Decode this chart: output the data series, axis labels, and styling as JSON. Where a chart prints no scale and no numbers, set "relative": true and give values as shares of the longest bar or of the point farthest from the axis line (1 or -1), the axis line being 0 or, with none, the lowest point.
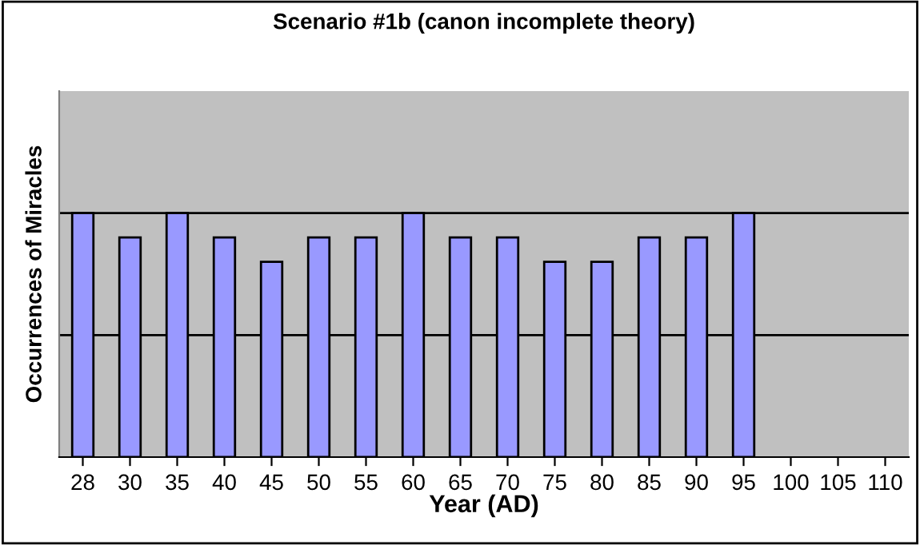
{
  "chart_data": {
    "type": "bar",
    "title": "Scenario #1b (canon incomplete theory)",
    "xlabel": "Year (AD)",
    "ylabel": "Occurrences of Miracles",
    "categories": [
      "28",
      "30",
      "35",
      "40",
      "45",
      "50",
      "55",
      "60",
      "65",
      "70",
      "75",
      "80",
      "85",
      "90",
      "95",
      "100",
      "105",
      "110"
    ],
    "values": [
      1,
      0.9,
      1,
      0.9,
      0.8,
      0.9,
      0.9,
      1,
      0.9,
      0.9,
      0.8,
      0.8,
      0.9,
      0.9,
      1,
      null,
      null,
      null
    ],
    "color": "#9999ff",
    "relative": true,
    "legend": false,
    "ref_lines": [
      {
        "axis": "y",
        "value": 0.5,
        "color": "#000000"
      },
      {
        "axis": "y",
        "value": 1,
        "color": "#000000"
      }
    ]
  }
}
